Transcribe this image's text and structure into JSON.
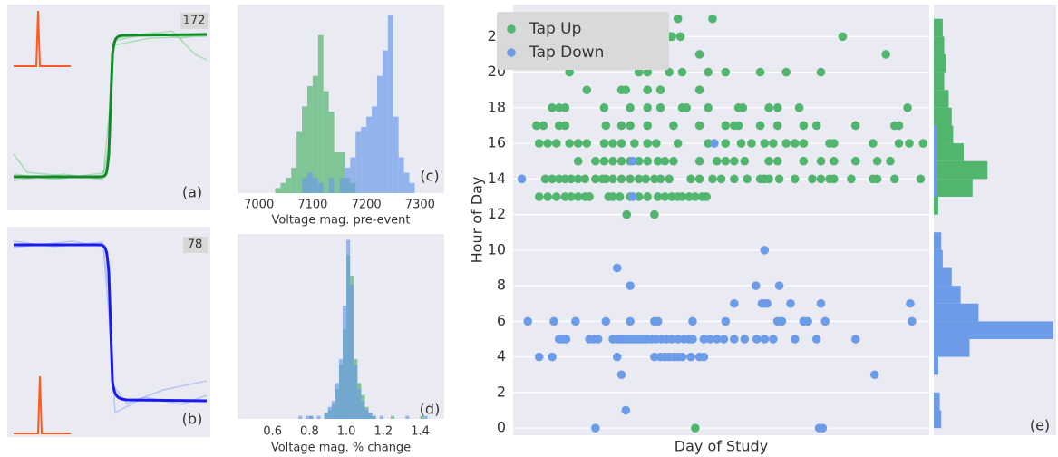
{
  "trace_panels": [
    {
      "count_label": "172",
      "panel_label": "(a)"
    },
    {
      "count_label": "78",
      "panel_label": "(b)"
    }
  ],
  "chart_data": [
    {
      "type": "histogram",
      "panel_label": "(c)",
      "x_label": "Voltage mag. pre-event",
      "xlim": [
        6960,
        7345
      ],
      "xticks": [
        7000,
        7100,
        7200,
        7300
      ],
      "ylim": [
        0,
        37
      ],
      "bins": [
        7030,
        7040,
        7050,
        7060,
        7070,
        7080,
        7090,
        7100,
        7110,
        7120,
        7130,
        7140,
        7150,
        7160,
        7170,
        7180,
        7190,
        7200,
        7210,
        7220,
        7230,
        7240,
        7250,
        7260,
        7270,
        7280,
        7290
      ],
      "series": [
        {
          "color": "#52b56e",
          "counts": [
            1,
            2,
            3,
            5,
            12,
            17,
            21,
            23,
            31,
            20,
            16,
            8,
            8,
            3,
            2,
            0,
            0,
            0,
            0,
            0,
            0,
            0,
            0,
            0,
            0,
            0
          ]
        },
        {
          "color": "#6c9be8",
          "counts": [
            0,
            0,
            0,
            0,
            0,
            3,
            4,
            3,
            2,
            0,
            3,
            0,
            3,
            5,
            7,
            12,
            13,
            15,
            17,
            23,
            28,
            35,
            15,
            7,
            4,
            2
          ]
        }
      ]
    },
    {
      "type": "histogram",
      "panel_label": "(d)",
      "x_label": "Voltage mag. % change",
      "xlim": [
        0.41,
        1.53
      ],
      "xticks": [
        0.6,
        0.8,
        {
          "value": 1,
          "label": "1.0"
        },
        1.2,
        1.4
      ],
      "ylim": [
        0,
        62
      ],
      "bins": [
        0.74,
        0.76,
        0.78,
        0.8,
        0.82,
        0.84,
        0.86,
        0.88,
        0.9,
        0.92,
        0.94,
        0.96,
        0.98,
        1,
        1.02,
        1.04,
        1.06,
        1.08,
        1.1,
        1.12,
        1.14,
        1.16,
        1.18,
        1.2,
        1.22,
        1.24,
        1.26,
        1.28,
        1.3,
        1.32,
        1.34,
        1.36,
        1.38,
        1.4,
        1.42,
        1.44
      ],
      "series": [
        {
          "color": "#52b56e",
          "counts": [
            0,
            0,
            0,
            1,
            0,
            0,
            0,
            2,
            3,
            5,
            10,
            18,
            30,
            55,
            48,
            20,
            12,
            8,
            4,
            2,
            1,
            0,
            0,
            0,
            0,
            1,
            0,
            0,
            0,
            0,
            0,
            0,
            0,
            1,
            0
          ]
        },
        {
          "color": "#6c9be8",
          "counts": [
            1,
            0,
            1,
            1,
            0,
            1,
            0,
            2,
            4,
            6,
            12,
            20,
            38,
            60,
            45,
            18,
            10,
            6,
            3,
            2,
            1,
            0,
            1,
            0,
            0,
            0,
            0,
            0,
            0,
            1,
            0,
            0,
            0,
            0,
            1
          ]
        }
      ]
    },
    {
      "type": "scatter",
      "x_label": "Day of Study",
      "y_label": "Hour of Day",
      "grid": true,
      "legend": "upper-left",
      "xlim": [
        0,
        480
      ],
      "ylim": [
        -0.4,
        23.8
      ],
      "yticks": [
        0,
        2,
        4,
        6,
        8,
        10,
        12,
        14,
        16,
        18,
        20,
        22
      ],
      "series": [
        {
          "name": "Tap Up",
          "color": "#52b56e",
          "x": [
            30,
            40,
            50,
            60,
            67,
            75,
            83,
            88,
            110,
            115,
            123,
            135,
            145,
            155,
            167,
            175,
            183,
            190,
            195,
            203,
            210,
            218,
            223,
            37,
            45,
            53,
            60,
            67,
            75,
            83,
            95,
            103,
            107,
            115,
            125,
            135,
            145,
            153,
            163,
            170,
            180,
            205,
            215,
            230,
            240,
            255,
            270,
            285,
            290,
            295,
            307,
            325,
            345,
            355,
            365,
            370,
            390,
            415,
            420,
            440,
            470,
            75,
            95,
            105,
            115,
            125,
            135,
            145,
            155,
            167,
            175,
            185,
            215,
            235,
            245,
            255,
            267,
            295,
            305,
            335,
            355,
            370,
            395,
            420,
            435,
            30,
            40,
            50,
            65,
            75,
            85,
            105,
            115,
            125,
            140,
            155,
            165,
            190,
            225,
            245,
            263,
            275,
            290,
            300,
            315,
            325,
            335,
            365,
            370,
            415,
            445,
            457,
            473,
            27,
            35,
            53,
            60,
            107,
            125,
            135,
            155,
            185,
            215,
            245,
            255,
            260,
            285,
            305,
            335,
            350,
            395,
            440,
            445,
            45,
            53,
            60,
            105,
            135,
            155,
            170,
            195,
            200,
            225,
            260,
            265,
            295,
            305,
            330,
            455,
            85,
            125,
            130,
            155,
            170,
            215,
            65,
            145,
            155,
            180,
            195,
            225,
            245,
            285,
            315,
            355,
            67,
            160,
            215,
            430,
            135,
            177,
            180,
            183,
            193,
            380,
            155,
            190,
            230,
            131,
            163,
            210
          ],
          "values": [
            13,
            13,
            13,
            13,
            13,
            13,
            13,
            13,
            13,
            13,
            13,
            13,
            13,
            13,
            13,
            13,
            13,
            13,
            13,
            13,
            13,
            13,
            13,
            14,
            14,
            14,
            14,
            14,
            14,
            14,
            14,
            14,
            14,
            14,
            14,
            14,
            14,
            14,
            14,
            14,
            14,
            14,
            14,
            14,
            14,
            14,
            14,
            14,
            14,
            14,
            14,
            14,
            14,
            14,
            14,
            14,
            14,
            14,
            14,
            14,
            14,
            15,
            15,
            15,
            15,
            15,
            15,
            15,
            15,
            15,
            15,
            15,
            15,
            15,
            15,
            15,
            15,
            15,
            15,
            15,
            15,
            15,
            15,
            15,
            15,
            16,
            16,
            16,
            16,
            16,
            16,
            16,
            16,
            16,
            16,
            16,
            16,
            16,
            16,
            16,
            16,
            16,
            16,
            16,
            16,
            16,
            16,
            16,
            16,
            16,
            16,
            16,
            16,
            17,
            17,
            17,
            17,
            17,
            17,
            17,
            17,
            17,
            17,
            17,
            17,
            17,
            17,
            17,
            17,
            17,
            17,
            17,
            17,
            18,
            18,
            18,
            18,
            18,
            18,
            18,
            18,
            18,
            18,
            18,
            18,
            18,
            18,
            18,
            18,
            19,
            19,
            19,
            19,
            19,
            19,
            20,
            20,
            20,
            20,
            20,
            20,
            20,
            20,
            20,
            20,
            21,
            21,
            21,
            21,
            22,
            22,
            22,
            22,
            22,
            22,
            23,
            23,
            23,
            12,
            12,
            0
          ]
        },
        {
          "name": "Tap Down",
          "color": "#6c9be8",
          "x": [
            95,
            353,
            357,
            130,
            125,
            417,
            30,
            45,
            120,
            163,
            170,
            175,
            180,
            185,
            190,
            195,
            205,
            215,
            220,
            53,
            57,
            61,
            88,
            93,
            98,
            115,
            120,
            123,
            127,
            131,
            135,
            139,
            143,
            147,
            151,
            155,
            160,
            165,
            171,
            177,
            183,
            190,
            197,
            203,
            207,
            220,
            227,
            235,
            243,
            255,
            267,
            281,
            290,
            300,
            325,
            350,
            395,
            17,
            47,
            72,
            107,
            135,
            163,
            167,
            207,
            245,
            305,
            310,
            335,
            340,
            360,
            460,
            255,
            287,
            290,
            293,
            320,
            355,
            458,
            135,
            280,
            307,
            120,
            290,
            138,
            10,
            138,
            232
          ],
          "values": [
            0,
            0,
            0,
            1,
            3,
            3,
            4,
            4,
            4,
            4,
            4,
            4,
            4,
            4,
            4,
            4,
            4,
            4,
            4,
            5,
            5,
            5,
            5,
            5,
            5,
            5,
            5,
            5,
            5,
            5,
            5,
            5,
            5,
            5,
            5,
            5,
            5,
            5,
            5,
            5,
            5,
            5,
            5,
            5,
            5,
            5,
            5,
            5,
            5,
            5,
            5,
            5,
            5,
            5,
            5,
            5,
            5,
            6,
            6,
            6,
            6,
            6,
            6,
            6,
            6,
            6,
            6,
            6,
            6,
            6,
            6,
            6,
            7,
            7,
            7,
            7,
            7,
            7,
            7,
            8,
            8,
            8,
            9,
            10,
            13,
            14,
            15,
            16
          ]
        }
      ]
    },
    {
      "type": "histogram",
      "orientation": "horizontal",
      "panel_label": "(e)",
      "xlim": [
        0,
        41
      ],
      "ylim": [
        -0.4,
        23.8
      ],
      "bins": [
        0,
        1,
        2,
        3,
        4,
        5,
        6,
        7,
        8,
        9,
        10,
        11,
        12,
        13,
        14,
        15,
        16,
        17,
        18,
        19,
        20,
        21,
        22,
        23,
        24
      ],
      "series": [
        {
          "color": "#52b56e",
          "counts": [
            0,
            0,
            0,
            0,
            0,
            0,
            0,
            0,
            0,
            0,
            0,
            0,
            1.5,
            13,
            18,
            10,
            6.5,
            6,
            5,
            3.5,
            4,
            3.5,
            3,
            0
          ]
        },
        {
          "color": "#6c9be8",
          "counts": [
            2.5,
            2,
            0,
            1.5,
            12,
            40,
            15,
            9,
            6,
            3,
            2.5,
            0,
            0,
            1,
            1,
            1,
            1,
            0,
            0,
            0,
            0,
            0,
            0,
            0
          ]
        }
      ]
    }
  ]
}
